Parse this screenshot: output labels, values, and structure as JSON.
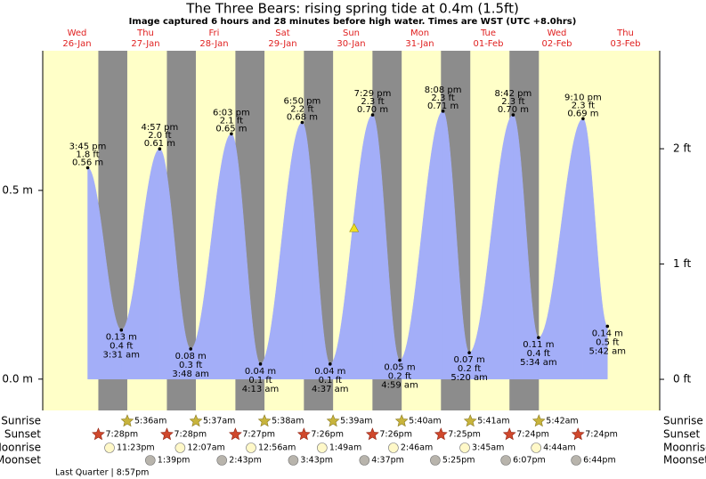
{
  "chart_data": {
    "type": "tide",
    "title": "The Three Bears: rising  spring tide at 0.4m (1.5ft)",
    "subtitle": "Image captured 6 hours and 28 minutes before high water. Times are WST (UTC +8.0hrs)",
    "ylim": [
      -0.083,
      0.87
    ],
    "yticks": [
      {
        "value": 0,
        "label": "0.0 m"
      },
      {
        "value": 0.5,
        "label": "0.5 m"
      }
    ],
    "y2lim": [
      -0.27,
      2.85
    ],
    "y2ticks": [
      {
        "value": 0,
        "label": "0 ft"
      },
      {
        "value": 1,
        "label": "1 ft"
      },
      {
        "value": 2,
        "label": "2 ft"
      }
    ],
    "colors": {
      "day": "#ffffc8",
      "night": "#8c8c8c",
      "tide": "#a3aef8",
      "date": "#e02020"
    },
    "row_labels": {
      "sunrise": "Sunrise",
      "sunset": "Sunset",
      "moonrise": "Moonrise",
      "moonset": "Moonset"
    },
    "moon_phase": "Last Quarter | 8:57pm",
    "days": [
      {
        "weekday": "Wed",
        "date": "26-Jan",
        "tides": [
          {
            "time": "3:45 pm",
            "height_m": 0.56,
            "label_m": "0.56 m",
            "label_ft": "1.8 ft",
            "kind": "high"
          }
        ],
        "sunset": "7:28pm",
        "moonrise": "11:23pm"
      },
      {
        "weekday": "Thu",
        "date": "27-Jan",
        "tides": [
          {
            "time": "3:31 am",
            "height_m": 0.13,
            "label_m": "0.13 m",
            "label_ft": "0.4 ft",
            "kind": "low"
          },
          {
            "time": "4:57 pm",
            "height_m": 0.61,
            "label_m": "0.61 m",
            "label_ft": "2.0 ft",
            "kind": "high"
          }
        ],
        "sunrise": "5:36am",
        "sunset": "7:28pm",
        "moonset": "1:39pm"
      },
      {
        "weekday": "Fri",
        "date": "28-Jan",
        "tides": [
          {
            "time": "3:48 am",
            "height_m": 0.08,
            "label_m": "0.08 m",
            "label_ft": "0.3 ft",
            "kind": "low"
          },
          {
            "time": "6:03 pm",
            "height_m": 0.65,
            "label_m": "0.65 m",
            "label_ft": "2.1 ft",
            "kind": "high"
          }
        ],
        "sunrise": "5:37am",
        "sunset": "7:27pm",
        "moonrise": "12:07am",
        "moonset": "2:43pm"
      },
      {
        "weekday": "Sat",
        "date": "29-Jan",
        "tides": [
          {
            "time": "4:13 am",
            "height_m": 0.04,
            "label_m": "0.04 m",
            "label_ft": "0.1 ft",
            "kind": "low"
          },
          {
            "time": "6:50 pm",
            "height_m": 0.68,
            "label_m": "0.68 m",
            "label_ft": "2.2 ft",
            "kind": "high"
          }
        ],
        "sunrise": "5:38am",
        "sunset": "7:26pm",
        "moonrise": "12:56am",
        "moonset": "3:43pm"
      },
      {
        "weekday": "Sun",
        "date": "30-Jan",
        "tides": [
          {
            "time": "4:37 am",
            "height_m": 0.04,
            "label_m": "0.04 m",
            "label_ft": "0.1 ft",
            "kind": "low"
          },
          {
            "time": "7:29 pm",
            "height_m": 0.7,
            "label_m": "0.70 m",
            "label_ft": "2.3 ft",
            "kind": "high"
          }
        ],
        "sunrise": "5:39am",
        "sunset": "7:26pm",
        "moonrise": "1:49am",
        "moonset": "4:37pm",
        "now_hour": 13.0,
        "now_height_m": 0.4
      },
      {
        "weekday": "Mon",
        "date": "31-Jan",
        "tides": [
          {
            "time": "4:59 am",
            "height_m": 0.05,
            "label_m": "0.05 m",
            "label_ft": "0.2 ft",
            "kind": "low"
          },
          {
            "time": "8:08 pm",
            "height_m": 0.71,
            "label_m": "0.71 m",
            "label_ft": "2.3 ft",
            "kind": "high"
          }
        ],
        "sunrise": "5:40am",
        "sunset": "7:25pm",
        "moonrise": "2:46am",
        "moonset": "5:25pm"
      },
      {
        "weekday": "Tue",
        "date": "01-Feb",
        "tides": [
          {
            "time": "5:20 am",
            "height_m": 0.07,
            "label_m": "0.07 m",
            "label_ft": "0.2 ft",
            "kind": "low"
          },
          {
            "time": "8:42 pm",
            "height_m": 0.7,
            "label_m": "0.70 m",
            "label_ft": "2.3 ft",
            "kind": "high"
          }
        ],
        "sunrise": "5:41am",
        "sunset": "7:24pm",
        "moonrise": "3:45am",
        "moonset": "6:07pm"
      },
      {
        "weekday": "Wed",
        "date": "02-Feb",
        "tides": [
          {
            "time": "5:34 am",
            "height_m": 0.11,
            "label_m": "0.11 m",
            "label_ft": "0.4 ft",
            "kind": "low"
          },
          {
            "time": "9:10 pm",
            "height_m": 0.69,
            "label_m": "0.69 m",
            "label_ft": "2.3 ft",
            "kind": "high"
          }
        ],
        "sunrise": "5:42am",
        "sunset": "7:24pm",
        "moonrise": "4:44am",
        "moonset": "6:44pm"
      },
      {
        "weekday": "Thu",
        "date": "03-Feb",
        "tides": [
          {
            "time": "5:42 am",
            "height_m": 0.14,
            "label_m": "0.14 m",
            "label_ft": "0.5 ft",
            "kind": "low"
          }
        ]
      }
    ]
  }
}
